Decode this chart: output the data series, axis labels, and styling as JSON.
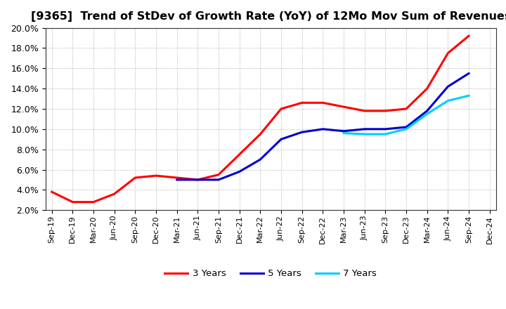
{
  "title": "[9365]  Trend of StDev of Growth Rate (YoY) of 12Mo Mov Sum of Revenues",
  "ylim": [
    0.02,
    0.2
  ],
  "yticks": [
    0.02,
    0.04,
    0.06,
    0.08,
    0.1,
    0.12,
    0.14,
    0.16,
    0.18,
    0.2
  ],
  "x_labels": [
    "Sep-19",
    "Dec-19",
    "Mar-20",
    "Jun-20",
    "Sep-20",
    "Dec-20",
    "Mar-21",
    "Jun-21",
    "Sep-21",
    "Dec-21",
    "Mar-22",
    "Jun-22",
    "Sep-22",
    "Dec-22",
    "Mar-23",
    "Jun-23",
    "Sep-23",
    "Dec-23",
    "Mar-24",
    "Jun-24",
    "Sep-24",
    "Dec-24"
  ],
  "series": {
    "3 Years": {
      "color": "#FF0000",
      "data": [
        0.038,
        0.028,
        0.028,
        0.036,
        0.052,
        0.054,
        0.052,
        0.05,
        0.055,
        0.075,
        0.095,
        0.12,
        0.126,
        0.126,
        0.122,
        0.118,
        0.118,
        0.12,
        0.14,
        0.175,
        0.192,
        null
      ]
    },
    "5 Years": {
      "color": "#0000CD",
      "data": [
        null,
        null,
        null,
        null,
        null,
        null,
        0.05,
        0.05,
        0.05,
        0.058,
        0.07,
        0.09,
        0.097,
        0.1,
        0.098,
        0.1,
        0.1,
        0.102,
        0.118,
        0.142,
        0.155,
        null
      ]
    },
    "7 Years": {
      "color": "#00CCFF",
      "data": [
        null,
        null,
        null,
        null,
        null,
        null,
        null,
        null,
        null,
        null,
        null,
        null,
        null,
        null,
        0.096,
        0.095,
        0.095,
        0.1,
        0.115,
        0.128,
        0.133,
        null
      ]
    },
    "10 Years": {
      "color": "#008000",
      "data": [
        null,
        null,
        null,
        null,
        null,
        null,
        null,
        null,
        null,
        null,
        null,
        null,
        null,
        null,
        null,
        null,
        null,
        null,
        null,
        null,
        null,
        null
      ]
    }
  },
  "background_color": "#FFFFFF",
  "grid_color": "#AAAAAA",
  "title_fontsize": 11.5,
  "legend_ncol": 4
}
